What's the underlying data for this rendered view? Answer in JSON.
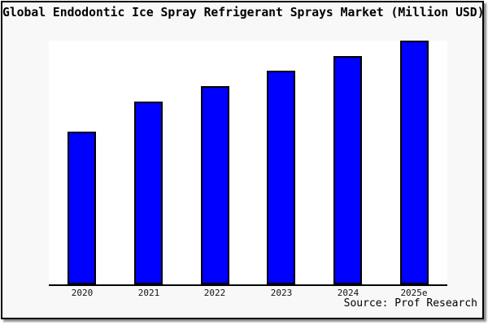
{
  "window": {
    "title": "Global Endodontic Ice Spray Refrigerant Sprays Market (Million USD)"
  },
  "colors": {
    "bar_fill": "#0000ff",
    "bar_border": "#000000",
    "plot_bg": "#ffffff",
    "figure_bg": "#f8f8f8",
    "frame_border": "#000000",
    "shadow": "#8f8f8f",
    "axis": "#000000",
    "text": "#000000"
  },
  "chart_data": {
    "type": "bar",
    "title": "Global Endodontic Ice Spray Refrigerant Sprays Market (Million USD)",
    "categories": [
      "2020",
      "2021",
      "2022",
      "2023",
      "2024",
      "2025e"
    ],
    "values": [
      62.7,
      75.0,
      81.3,
      87.7,
      93.7,
      100.0
    ],
    "values_note": "relative bar heights as % of 2025e bar; no y-axis scale shown in chart",
    "xlabel": "",
    "ylabel": "",
    "ylim": [
      0,
      100
    ],
    "grid": false,
    "legend": false,
    "y_axis_visible": false,
    "source": "Source: Prof Research"
  }
}
